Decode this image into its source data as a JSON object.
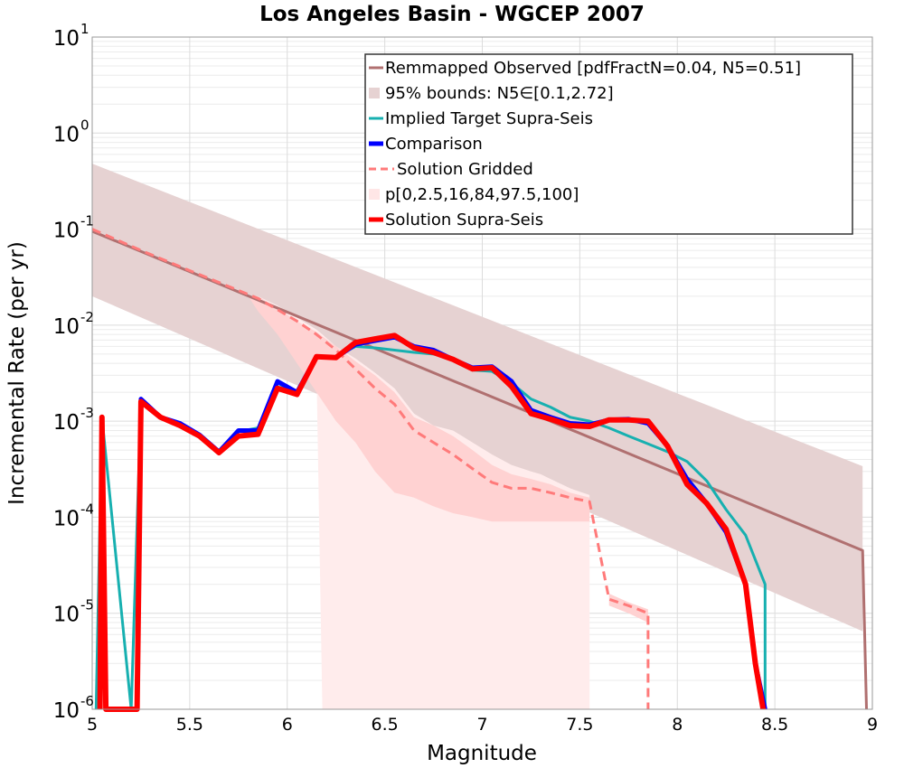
{
  "chart_data": {
    "type": "line",
    "title": "Los Angeles Basin - WGCEP 2007",
    "xlabel": "Magnitude",
    "ylabel": "Incremental Rate (per yr)",
    "xlim": [
      5,
      9
    ],
    "ylim": [
      1e-06,
      10
    ],
    "yscale": "log",
    "grid": true,
    "x_ticks": [
      5,
      5.5,
      6,
      6.5,
      7,
      7.5,
      8,
      8.5,
      9
    ],
    "x_tick_labels": [
      "5",
      "5.5",
      "6",
      "6.5",
      "7",
      "7.5",
      "8",
      "8.5",
      "9"
    ],
    "y_ticks": [
      {
        "value": 1e-06,
        "base": "10",
        "exp": "-6"
      },
      {
        "value": 1e-05,
        "base": "10",
        "exp": "-5"
      },
      {
        "value": 0.0001,
        "base": "10",
        "exp": "-4"
      },
      {
        "value": 0.001,
        "base": "10",
        "exp": "-3"
      },
      {
        "value": 0.01,
        "base": "10",
        "exp": "-2"
      },
      {
        "value": 0.1,
        "base": "10",
        "exp": "-1"
      },
      {
        "value": 1,
        "base": "10",
        "exp": "0"
      },
      {
        "value": 10,
        "base": "10",
        "exp": "1"
      }
    ],
    "legend_position": "top-right",
    "legend": [
      {
        "label": "Remmapped Observed [pdfFractN=0.04, N5=0.51]",
        "style": "line",
        "color": "#b07070"
      },
      {
        "label": "95% bounds: N5∈[0.1,2.72]",
        "style": "band",
        "color": "#e6d2d2"
      },
      {
        "label": "Implied Target Supra-Seis",
        "style": "line",
        "color": "#17b0b0"
      },
      {
        "label": "Comparison",
        "style": "thickline",
        "color": "#0000ff"
      },
      {
        "label": "Solution Gridded",
        "style": "dashed",
        "color": "#ff7a7a"
      },
      {
        "label": "p[0,2.5,16,84,97.5,100]",
        "style": "band",
        "color": "#ffe6e6"
      },
      {
        "label": "Solution Supra-Seis",
        "style": "thickline",
        "color": "#ff0000"
      }
    ],
    "series": [
      {
        "name": "95% bounds: N5∈[0.1,2.72]",
        "kind": "band",
        "color": "#e6d2d2",
        "x": [
          5.0,
          8.95
        ],
        "lower": [
          0.02,
          6.5e-06
        ],
        "upper": [
          0.48,
          0.00034
        ]
      },
      {
        "name": "p[0,2.5,16,84,97.5,100] (outer)",
        "kind": "band",
        "color": "#ffecec",
        "x": [
          5.8,
          5.85,
          5.95,
          6.05,
          6.15,
          6.18,
          6.25,
          6.35,
          6.45,
          6.55,
          6.65,
          6.75,
          6.85,
          6.95,
          7.05,
          7.15,
          7.25,
          7.3,
          7.35,
          7.45,
          7.55
        ],
        "lower": [
          0.02,
          0.019,
          0.014,
          0.008,
          0.0035,
          1e-06,
          1e-06,
          1e-06,
          1e-06,
          1e-06,
          1e-06,
          1e-06,
          1e-06,
          1e-06,
          1e-06,
          1e-06,
          1e-06,
          1e-06,
          1e-06,
          1e-06,
          1e-06
        ],
        "upper": [
          0.02,
          0.02,
          0.016,
          0.012,
          0.009,
          0.008,
          0.006,
          0.0045,
          0.0032,
          0.0022,
          0.0012,
          0.0009,
          0.0008,
          0.0006,
          0.00045,
          0.00035,
          0.0003,
          0.00028,
          0.00025,
          0.0002,
          0.00017
        ]
      },
      {
        "name": "p[0,2.5,16,84,97.5,100] (inner)",
        "kind": "band",
        "color": "#ffd2d2",
        "x": [
          5.8,
          5.85,
          5.95,
          6.05,
          6.15,
          6.25,
          6.35,
          6.45,
          6.55,
          6.65,
          6.75,
          6.85,
          6.95,
          7.05,
          7.15,
          7.25,
          7.35,
          7.45,
          7.55
        ],
        "lower": [
          0.02,
          0.014,
          0.008,
          0.004,
          0.002,
          0.001,
          0.0006,
          0.0003,
          0.00018,
          0.00016,
          0.00013,
          0.00011,
          0.0001,
          9e-05,
          9e-05,
          9e-05,
          9e-05,
          9e-05,
          9e-05
        ],
        "upper": [
          0.02,
          0.02,
          0.015,
          0.011,
          0.0085,
          0.006,
          0.0042,
          0.003,
          0.002,
          0.0011,
          0.0009,
          0.0007,
          0.0005,
          0.00035,
          0.00028,
          0.00025,
          0.00022,
          0.00018,
          0.00016
        ]
      },
      {
        "name": "p[0,2.5,16,84,97.5,100] (tail)",
        "kind": "band",
        "color": "#ffd2d2",
        "x": [
          7.65,
          7.75,
          7.85
        ],
        "lower": [
          1.2e-05,
          1e-05,
          8e-06
        ],
        "upper": [
          1.6e-05,
          1.3e-05,
          1.1e-05
        ]
      },
      {
        "name": "Remmapped Observed [pdfFractN=0.04, N5=0.51]",
        "kind": "line",
        "color": "#b07070",
        "width": 3,
        "x": [
          5.0,
          8.95,
          8.95,
          8.97
        ],
        "y": [
          0.095,
          4.5e-05,
          4.5e-05,
          1e-06
        ]
      },
      {
        "name": "Solution Gridded",
        "kind": "dashed",
        "color": "#ff7a7a",
        "width": 3,
        "x": [
          5.0,
          5.25,
          5.5,
          5.75,
          5.85,
          5.95,
          6.05,
          6.15,
          6.25,
          6.35,
          6.45,
          6.55,
          6.65,
          6.75,
          6.85,
          6.95,
          7.05,
          7.15,
          7.25,
          7.35,
          7.45,
          7.55,
          7.65,
          7.75,
          7.85,
          7.85
        ],
        "y": [
          0.1,
          0.06,
          0.037,
          0.023,
          0.019,
          0.0145,
          0.011,
          0.008,
          0.0055,
          0.0035,
          0.0022,
          0.0015,
          0.0008,
          0.0006,
          0.00045,
          0.00032,
          0.00023,
          0.0002,
          0.0002,
          0.00018,
          0.00016,
          0.000145,
          1.4e-05,
          1.2e-05,
          1e-05,
          1e-06
        ]
      },
      {
        "name": "Implied Target Supra-Seis",
        "kind": "line",
        "color": "#17b0b0",
        "width": 3,
        "x": [
          5.02,
          5.05,
          5.2,
          5.25,
          5.35,
          5.45,
          5.55,
          5.65,
          5.75,
          5.85,
          5.95,
          6.05,
          6.15,
          6.25,
          6.35,
          6.45,
          6.55,
          6.65,
          6.75,
          6.85,
          6.95,
          7.05,
          7.15,
          7.25,
          7.35,
          7.45,
          7.55,
          7.65,
          7.75,
          7.85,
          7.95,
          8.05,
          8.15,
          8.25,
          8.35,
          8.45,
          8.45
        ],
        "y": [
          1e-06,
          0.0011,
          1e-06,
          0.0016,
          0.0011,
          0.00095,
          0.0007,
          0.00048,
          0.00078,
          0.00085,
          0.0025,
          0.0019,
          0.0047,
          0.0047,
          0.006,
          0.0058,
          0.0055,
          0.0052,
          0.005,
          0.0045,
          0.0034,
          0.0033,
          0.0025,
          0.0017,
          0.0014,
          0.0011,
          0.001,
          0.00085,
          0.0007,
          0.00058,
          0.00048,
          0.00038,
          0.00024,
          0.00012,
          6.5e-05,
          2e-05,
          1e-06
        ]
      },
      {
        "name": "Comparison",
        "kind": "thickline",
        "color": "#0000ff",
        "width": 5,
        "x": [
          5.04,
          5.05,
          5.07,
          5.23,
          5.25,
          5.35,
          5.45,
          5.55,
          5.65,
          5.75,
          5.85,
          5.95,
          6.05,
          6.15,
          6.25,
          6.35,
          6.45,
          6.55,
          6.65,
          6.75,
          6.85,
          6.95,
          7.05,
          7.15,
          7.25,
          7.35,
          7.45,
          7.55,
          7.65,
          7.75,
          7.85,
          7.95,
          8.05,
          8.15,
          8.25,
          8.35,
          8.4,
          8.45
        ],
        "y": [
          1e-06,
          0.0011,
          1e-06,
          1e-06,
          0.0017,
          0.0011,
          0.00095,
          0.00072,
          0.00048,
          0.0008,
          0.0008,
          0.0026,
          0.002,
          0.0047,
          0.0046,
          0.0063,
          0.0069,
          0.0075,
          0.006,
          0.0055,
          0.0044,
          0.0036,
          0.0037,
          0.0026,
          0.0013,
          0.0011,
          0.00095,
          0.00092,
          0.00103,
          0.00105,
          0.00095,
          0.00055,
          0.00025,
          0.00014,
          7e-05,
          2e-05,
          3e-06,
          1e-06
        ]
      },
      {
        "name": "Solution Supra-Seis",
        "kind": "thickline",
        "color": "#ff0000",
        "width": 6,
        "x": [
          5.04,
          5.05,
          5.07,
          5.23,
          5.25,
          5.35,
          5.45,
          5.55,
          5.65,
          5.75,
          5.85,
          5.95,
          6.05,
          6.15,
          6.25,
          6.35,
          6.45,
          6.55,
          6.65,
          6.75,
          6.85,
          6.95,
          7.05,
          7.15,
          7.25,
          7.35,
          7.45,
          7.55,
          7.65,
          7.75,
          7.85,
          7.95,
          8.05,
          8.15,
          8.25,
          8.35,
          8.4,
          8.44
        ],
        "y": [
          1e-06,
          0.0011,
          1e-06,
          1e-06,
          0.0016,
          0.0011,
          0.0009,
          0.0007,
          0.00047,
          0.0007,
          0.00073,
          0.0022,
          0.0019,
          0.0047,
          0.0046,
          0.0066,
          0.0072,
          0.0078,
          0.0058,
          0.0052,
          0.0044,
          0.0035,
          0.0036,
          0.0023,
          0.0012,
          0.00105,
          0.0009,
          0.00088,
          0.00103,
          0.00103,
          0.001,
          0.00055,
          0.00022,
          0.00014,
          7.5e-05,
          2e-05,
          3e-06,
          1e-06
        ]
      }
    ]
  }
}
